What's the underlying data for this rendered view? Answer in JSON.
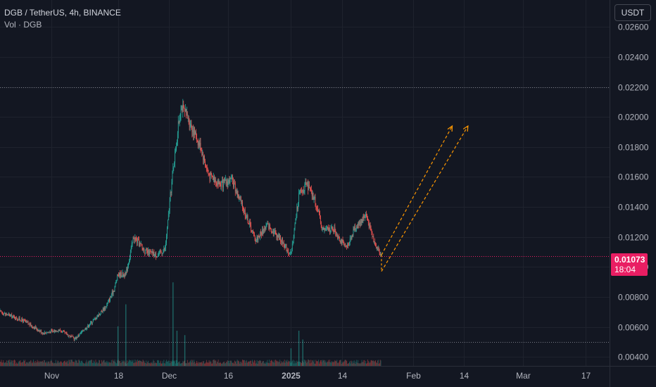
{
  "header": {
    "symbol_line": "DGB / TetherUS, 4h, BINANCE",
    "volume_line": "Vol · DGB"
  },
  "currency_button": "USDT",
  "last_price": {
    "value": "0.01073",
    "countdown": "18:04",
    "color": "#e91e63"
  },
  "colors": {
    "up": "#26a69a",
    "down": "#ef5350",
    "projection": "#ff9800",
    "background": "#131722",
    "grid": "#1e222d"
  },
  "chart_data": {
    "type": "candlestick",
    "series_name": "DGB / TetherUS",
    "interval": "4h",
    "exchange": "BINANCE",
    "ylim": [
      0.0034,
      0.0278
    ],
    "y_ticks": [
      "0.00400",
      "0.00600",
      "0.00800",
      "0.01000",
      "0.01200",
      "0.01400",
      "0.01600",
      "0.01800",
      "0.02000",
      "0.02200",
      "0.02400",
      "0.02600"
    ],
    "x_ticks": [
      {
        "date": "2024-11-01",
        "label": "Nov",
        "bold": false
      },
      {
        "date": "2024-11-18",
        "label": "18",
        "bold": false
      },
      {
        "date": "2024-12-01",
        "label": "Dec",
        "bold": false
      },
      {
        "date": "2024-12-16",
        "label": "16",
        "bold": false
      },
      {
        "date": "2025-01-01",
        "label": "2025",
        "bold": true
      },
      {
        "date": "2025-01-14",
        "label": "14",
        "bold": false
      },
      {
        "date": "2025-02-01",
        "label": "Feb",
        "bold": false
      },
      {
        "date": "2025-02-14",
        "label": "14",
        "bold": false
      },
      {
        "date": "2025-03-01",
        "label": "Mar",
        "bold": false
      },
      {
        "date": "2025-03-17",
        "label": "17",
        "bold": false
      }
    ],
    "x_range": [
      "2024-10-19",
      "2025-03-23"
    ],
    "price_path": [
      [
        "2024-10-19",
        0.007
      ],
      [
        "2024-10-25",
        0.0064
      ],
      [
        "2024-10-30",
        0.0056
      ],
      [
        "2024-11-03",
        0.0058
      ],
      [
        "2024-11-07",
        0.0052
      ],
      [
        "2024-11-12",
        0.0065
      ],
      [
        "2024-11-15",
        0.0074
      ],
      [
        "2024-11-17",
        0.0085
      ],
      [
        "2024-11-18",
        0.0095
      ],
      [
        "2024-11-20",
        0.0095
      ],
      [
        "2024-11-22",
        0.012
      ],
      [
        "2024-11-25",
        0.011
      ],
      [
        "2024-11-28",
        0.0108
      ],
      [
        "2024-11-30",
        0.0112
      ],
      [
        "2024-12-02",
        0.0165
      ],
      [
        "2024-12-04",
        0.0208
      ],
      [
        "2024-12-06",
        0.0198
      ],
      [
        "2024-12-09",
        0.018
      ],
      [
        "2024-12-11",
        0.0162
      ],
      [
        "2024-12-14",
        0.0155
      ],
      [
        "2024-12-17",
        0.0158
      ],
      [
        "2024-12-20",
        0.0138
      ],
      [
        "2024-12-23",
        0.0118
      ],
      [
        "2024-12-26",
        0.0128
      ],
      [
        "2024-12-29",
        0.012
      ],
      [
        "2025-01-01",
        0.0108
      ],
      [
        "2025-01-03",
        0.0148
      ],
      [
        "2025-01-05",
        0.0155
      ],
      [
        "2025-01-07",
        0.0145
      ],
      [
        "2025-01-09",
        0.0125
      ],
      [
        "2025-01-12",
        0.0125
      ],
      [
        "2025-01-15",
        0.0112
      ],
      [
        "2025-01-17",
        0.0125
      ],
      [
        "2025-01-20",
        0.0135
      ],
      [
        "2025-01-22",
        0.0118
      ],
      [
        "2025-01-24",
        0.0107
      ]
    ],
    "projection_lines": [
      {
        "from": [
          "2025-01-24",
          0.0108
        ],
        "to": [
          "2025-02-11",
          0.0194
        ]
      },
      {
        "from": [
          "2025-01-24",
          0.0097
        ],
        "to": [
          "2025-02-15",
          0.0194
        ]
      }
    ],
    "high_line": 0.022,
    "low_line": 0.005,
    "volume_spikes": [
      {
        "date": "2024-11-20",
        "value": 0.7
      },
      {
        "date": "2024-11-18",
        "value": 0.45
      },
      {
        "date": "2024-12-02",
        "value": 0.95
      },
      {
        "date": "2024-12-03",
        "value": 0.4
      },
      {
        "date": "2024-12-05",
        "value": 0.35
      },
      {
        "date": "2025-01-01",
        "value": 0.2
      },
      {
        "date": "2025-01-03",
        "value": 0.4
      },
      {
        "date": "2025-01-04",
        "value": 0.3
      }
    ]
  }
}
